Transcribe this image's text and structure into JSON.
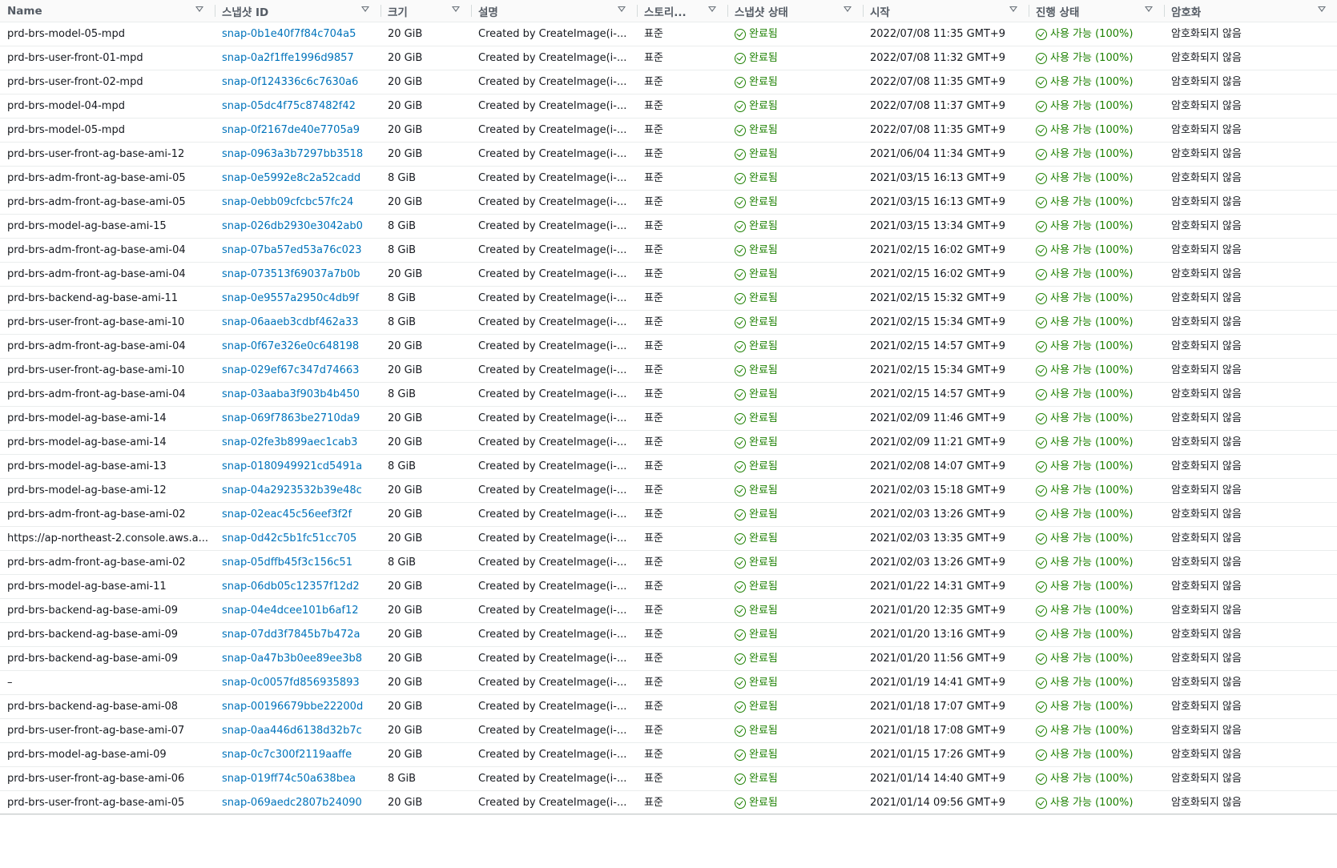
{
  "columns": [
    "Name",
    "스냅샷 ID",
    "크기",
    "설명",
    "스토리...",
    "스냅샷 상태",
    "시작",
    "진행 상태",
    "암호화"
  ],
  "rows": [
    {
      "name": "prd-brs-model-05-mpd",
      "id": "snap-0b1e40f7f84c704a5",
      "size": "20 GiB",
      "desc": "Created by CreateImage(i-...",
      "storage": "표준",
      "status": "완료됨",
      "start": "2022/07/08 11:35 GMT+9",
      "progress": "사용 가능 (100%)",
      "enc": "암호화되지 않음"
    },
    {
      "name": "prd-brs-user-front-01-mpd",
      "id": "snap-0a2f1ffe1996d9857",
      "size": "20 GiB",
      "desc": "Created by CreateImage(i-...",
      "storage": "표준",
      "status": "완료됨",
      "start": "2022/07/08 11:32 GMT+9",
      "progress": "사용 가능 (100%)",
      "enc": "암호화되지 않음"
    },
    {
      "name": "prd-brs-user-front-02-mpd",
      "id": "snap-0f124336c6c7630a6",
      "size": "20 GiB",
      "desc": "Created by CreateImage(i-...",
      "storage": "표준",
      "status": "완료됨",
      "start": "2022/07/08 11:35 GMT+9",
      "progress": "사용 가능 (100%)",
      "enc": "암호화되지 않음"
    },
    {
      "name": "prd-brs-model-04-mpd",
      "id": "snap-05dc4f75c87482f42",
      "size": "20 GiB",
      "desc": "Created by CreateImage(i-...",
      "storage": "표준",
      "status": "완료됨",
      "start": "2022/07/08 11:37 GMT+9",
      "progress": "사용 가능 (100%)",
      "enc": "암호화되지 않음"
    },
    {
      "name": "prd-brs-model-05-mpd",
      "id": "snap-0f2167de40e7705a9",
      "size": "20 GiB",
      "desc": "Created by CreateImage(i-...",
      "storage": "표준",
      "status": "완료됨",
      "start": "2022/07/08 11:35 GMT+9",
      "progress": "사용 가능 (100%)",
      "enc": "암호화되지 않음"
    },
    {
      "name": "prd-brs-user-front-ag-base-ami-12",
      "id": "snap-0963a3b7297bb3518",
      "size": "20 GiB",
      "desc": "Created by CreateImage(i-...",
      "storage": "표준",
      "status": "완료됨",
      "start": "2021/06/04 11:34 GMT+9",
      "progress": "사용 가능 (100%)",
      "enc": "암호화되지 않음"
    },
    {
      "name": "prd-brs-adm-front-ag-base-ami-05",
      "id": "snap-0e5992e8c2a52cadd",
      "size": "8 GiB",
      "desc": "Created by CreateImage(i-...",
      "storage": "표준",
      "status": "완료됨",
      "start": "2021/03/15 16:13 GMT+9",
      "progress": "사용 가능 (100%)",
      "enc": "암호화되지 않음"
    },
    {
      "name": "prd-brs-adm-front-ag-base-ami-05",
      "id": "snap-0ebb09cfcbc57fc24",
      "size": "20 GiB",
      "desc": "Created by CreateImage(i-...",
      "storage": "표준",
      "status": "완료됨",
      "start": "2021/03/15 16:13 GMT+9",
      "progress": "사용 가능 (100%)",
      "enc": "암호화되지 않음"
    },
    {
      "name": "prd-brs-model-ag-base-ami-15",
      "id": "snap-026db2930e3042ab0",
      "size": "8 GiB",
      "desc": "Created by CreateImage(i-...",
      "storage": "표준",
      "status": "완료됨",
      "start": "2021/03/15 13:34 GMT+9",
      "progress": "사용 가능 (100%)",
      "enc": "암호화되지 않음"
    },
    {
      "name": "prd-brs-adm-front-ag-base-ami-04",
      "id": "snap-07ba57ed53a76c023",
      "size": "8 GiB",
      "desc": "Created by CreateImage(i-...",
      "storage": "표준",
      "status": "완료됨",
      "start": "2021/02/15 16:02 GMT+9",
      "progress": "사용 가능 (100%)",
      "enc": "암호화되지 않음"
    },
    {
      "name": "prd-brs-adm-front-ag-base-ami-04",
      "id": "snap-073513f69037a7b0b",
      "size": "20 GiB",
      "desc": "Created by CreateImage(i-...",
      "storage": "표준",
      "status": "완료됨",
      "start": "2021/02/15 16:02 GMT+9",
      "progress": "사용 가능 (100%)",
      "enc": "암호화되지 않음"
    },
    {
      "name": "prd-brs-backend-ag-base-ami-11",
      "id": "snap-0e9557a2950c4db9f",
      "size": "8 GiB",
      "desc": "Created by CreateImage(i-...",
      "storage": "표준",
      "status": "완료됨",
      "start": "2021/02/15 15:32 GMT+9",
      "progress": "사용 가능 (100%)",
      "enc": "암호화되지 않음"
    },
    {
      "name": "prd-brs-user-front-ag-base-ami-10",
      "id": "snap-06aaeb3cdbf462a33",
      "size": "8 GiB",
      "desc": "Created by CreateImage(i-...",
      "storage": "표준",
      "status": "완료됨",
      "start": "2021/02/15 15:34 GMT+9",
      "progress": "사용 가능 (100%)",
      "enc": "암호화되지 않음"
    },
    {
      "name": "prd-brs-adm-front-ag-base-ami-04",
      "id": "snap-0f67e326e0c648198",
      "size": "20 GiB",
      "desc": "Created by CreateImage(i-...",
      "storage": "표준",
      "status": "완료됨",
      "start": "2021/02/15 14:57 GMT+9",
      "progress": "사용 가능 (100%)",
      "enc": "암호화되지 않음"
    },
    {
      "name": "prd-brs-user-front-ag-base-ami-10",
      "id": "snap-029ef67c347d74663",
      "size": "20 GiB",
      "desc": "Created by CreateImage(i-...",
      "storage": "표준",
      "status": "완료됨",
      "start": "2021/02/15 15:34 GMT+9",
      "progress": "사용 가능 (100%)",
      "enc": "암호화되지 않음"
    },
    {
      "name": "prd-brs-adm-front-ag-base-ami-04",
      "id": "snap-03aaba3f903b4b450",
      "size": "8 GiB",
      "desc": "Created by CreateImage(i-...",
      "storage": "표준",
      "status": "완료됨",
      "start": "2021/02/15 14:57 GMT+9",
      "progress": "사용 가능 (100%)",
      "enc": "암호화되지 않음"
    },
    {
      "name": "prd-brs-model-ag-base-ami-14",
      "id": "snap-069f7863be2710da9",
      "size": "20 GiB",
      "desc": "Created by CreateImage(i-...",
      "storage": "표준",
      "status": "완료됨",
      "start": "2021/02/09 11:46 GMT+9",
      "progress": "사용 가능 (100%)",
      "enc": "암호화되지 않음"
    },
    {
      "name": "prd-brs-model-ag-base-ami-14",
      "id": "snap-02fe3b899aec1cab3",
      "size": "20 GiB",
      "desc": "Created by CreateImage(i-...",
      "storage": "표준",
      "status": "완료됨",
      "start": "2021/02/09 11:21 GMT+9",
      "progress": "사용 가능 (100%)",
      "enc": "암호화되지 않음"
    },
    {
      "name": "prd-brs-model-ag-base-ami-13",
      "id": "snap-0180949921cd5491a",
      "size": "8 GiB",
      "desc": "Created by CreateImage(i-...",
      "storage": "표준",
      "status": "완료됨",
      "start": "2021/02/08 14:07 GMT+9",
      "progress": "사용 가능 (100%)",
      "enc": "암호화되지 않음"
    },
    {
      "name": "prd-brs-model-ag-base-ami-12",
      "id": "snap-04a2923532b39e48c",
      "size": "20 GiB",
      "desc": "Created by CreateImage(i-...",
      "storage": "표준",
      "status": "완료됨",
      "start": "2021/02/03 15:18 GMT+9",
      "progress": "사용 가능 (100%)",
      "enc": "암호화되지 않음"
    },
    {
      "name": "prd-brs-adm-front-ag-base-ami-02",
      "id": "snap-02eac45c56eef3f2f",
      "size": "20 GiB",
      "desc": "Created by CreateImage(i-...",
      "storage": "표준",
      "status": "완료됨",
      "start": "2021/02/03 13:26 GMT+9",
      "progress": "사용 가능 (100%)",
      "enc": "암호화되지 않음"
    },
    {
      "name": "https://ap-northeast-2.console.aws.a...",
      "id": "snap-0d42c5b1fc51cc705",
      "size": "20 GiB",
      "desc": "Created by CreateImage(i-...",
      "storage": "표준",
      "status": "완료됨",
      "start": "2021/02/03 13:35 GMT+9",
      "progress": "사용 가능 (100%)",
      "enc": "암호화되지 않음"
    },
    {
      "name": "prd-brs-adm-front-ag-base-ami-02",
      "id": "snap-05dffb45f3c156c51",
      "size": "8 GiB",
      "desc": "Created by CreateImage(i-...",
      "storage": "표준",
      "status": "완료됨",
      "start": "2021/02/03 13:26 GMT+9",
      "progress": "사용 가능 (100%)",
      "enc": "암호화되지 않음"
    },
    {
      "name": "prd-brs-model-ag-base-ami-11",
      "id": "snap-06db05c12357f12d2",
      "size": "20 GiB",
      "desc": "Created by CreateImage(i-...",
      "storage": "표준",
      "status": "완료됨",
      "start": "2021/01/22 14:31 GMT+9",
      "progress": "사용 가능 (100%)",
      "enc": "암호화되지 않음"
    },
    {
      "name": "prd-brs-backend-ag-base-ami-09",
      "id": "snap-04e4dcee101b6af12",
      "size": "20 GiB",
      "desc": "Created by CreateImage(i-...",
      "storage": "표준",
      "status": "완료됨",
      "start": "2021/01/20 12:35 GMT+9",
      "progress": "사용 가능 (100%)",
      "enc": "암호화되지 않음"
    },
    {
      "name": "prd-brs-backend-ag-base-ami-09",
      "id": "snap-07dd3f7845b7b472a",
      "size": "20 GiB",
      "desc": "Created by CreateImage(i-...",
      "storage": "표준",
      "status": "완료됨",
      "start": "2021/01/20 13:16 GMT+9",
      "progress": "사용 가능 (100%)",
      "enc": "암호화되지 않음"
    },
    {
      "name": "prd-brs-backend-ag-base-ami-09",
      "id": "snap-0a47b3b0ee89ee3b8",
      "size": "20 GiB",
      "desc": "Created by CreateImage(i-...",
      "storage": "표준",
      "status": "완료됨",
      "start": "2021/01/20 11:56 GMT+9",
      "progress": "사용 가능 (100%)",
      "enc": "암호화되지 않음"
    },
    {
      "name": "–",
      "id": "snap-0c0057fd856935893",
      "size": "20 GiB",
      "desc": "Created by CreateImage(i-...",
      "storage": "표준",
      "status": "완료됨",
      "start": "2021/01/19 14:41 GMT+9",
      "progress": "사용 가능 (100%)",
      "enc": "암호화되지 않음"
    },
    {
      "name": "prd-brs-backend-ag-base-ami-08",
      "id": "snap-00196679bbe22200d",
      "size": "20 GiB",
      "desc": "Created by CreateImage(i-...",
      "storage": "표준",
      "status": "완료됨",
      "start": "2021/01/18 17:07 GMT+9",
      "progress": "사용 가능 (100%)",
      "enc": "암호화되지 않음"
    },
    {
      "name": "prd-brs-user-front-ag-base-ami-07",
      "id": "snap-0aa446d6138d32b7c",
      "size": "20 GiB",
      "desc": "Created by CreateImage(i-...",
      "storage": "표준",
      "status": "완료됨",
      "start": "2021/01/18 17:08 GMT+9",
      "progress": "사용 가능 (100%)",
      "enc": "암호화되지 않음"
    },
    {
      "name": "prd-brs-model-ag-base-ami-09",
      "id": "snap-0c7c300f2119aaffe",
      "size": "20 GiB",
      "desc": "Created by CreateImage(i-...",
      "storage": "표준",
      "status": "완료됨",
      "start": "2021/01/15 17:26 GMT+9",
      "progress": "사용 가능 (100%)",
      "enc": "암호화되지 않음"
    },
    {
      "name": "prd-brs-user-front-ag-base-ami-06",
      "id": "snap-019ff74c50a638bea",
      "size": "8 GiB",
      "desc": "Created by CreateImage(i-...",
      "storage": "표준",
      "status": "완료됨",
      "start": "2021/01/14 14:40 GMT+9",
      "progress": "사용 가능 (100%)",
      "enc": "암호화되지 않음"
    },
    {
      "name": "prd-brs-user-front-ag-base-ami-05",
      "id": "snap-069aedc2807b24090",
      "size": "20 GiB",
      "desc": "Created by CreateImage(i-...",
      "storage": "표준",
      "status": "완료됨",
      "start": "2021/01/14 09:56 GMT+9",
      "progress": "사용 가능 (100%)",
      "enc": "암호화되지 않음"
    }
  ]
}
